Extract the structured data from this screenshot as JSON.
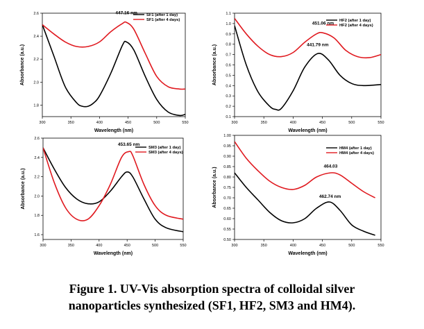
{
  "caption": {
    "line1": "Figure 1. UV-Vis absorption spectra of colloidal silver",
    "line2": "nanoparticles synthesized (SF1, HF2, SM3 and HM4)."
  },
  "colors": {
    "day1": "#000000",
    "day4": "#e0191f"
  },
  "chart_data": [
    {
      "id": "sf1",
      "type": "line",
      "xlabel": "Wavelength (nm)",
      "ylabel": "Absorbance (a.u.)",
      "xlim": [
        300,
        550
      ],
      "ylim": [
        1.7,
        2.6
      ],
      "xticks": [
        300,
        350,
        400,
        450,
        500,
        550
      ],
      "yticks": [
        1.8,
        2.0,
        2.2,
        2.4,
        2.6
      ],
      "ytick_labels": [
        "1.8",
        "2.0",
        "2.2",
        "2.4",
        "2.6"
      ],
      "legend": "top-right",
      "annotations": [
        {
          "text": "447.16 nm",
          "x": 447,
          "y": 2.59
        }
      ],
      "series": [
        {
          "name": "SF1 (after 1 day)",
          "color": "#000000",
          "x": [
            300,
            320,
            340,
            360,
            370,
            380,
            390,
            400,
            420,
            440,
            447,
            460,
            480,
            500,
            520,
            540,
            550
          ],
          "y": [
            2.5,
            2.23,
            1.96,
            1.82,
            1.79,
            1.79,
            1.82,
            1.88,
            2.08,
            2.32,
            2.35,
            2.28,
            2.05,
            1.85,
            1.74,
            1.71,
            1.72
          ]
        },
        {
          "name": "SF1 (after 4 days)",
          "color": "#e0191f",
          "x": [
            300,
            320,
            340,
            360,
            380,
            400,
            420,
            440,
            447,
            460,
            480,
            500,
            520,
            540,
            550
          ],
          "y": [
            2.5,
            2.42,
            2.35,
            2.31,
            2.31,
            2.35,
            2.44,
            2.51,
            2.52,
            2.46,
            2.25,
            2.05,
            1.96,
            1.94,
            1.94
          ]
        }
      ]
    },
    {
      "id": "hf2",
      "type": "line",
      "xlabel": "Wavelength (nm)",
      "ylabel": "Absorbance (a.u.)",
      "xlim": [
        300,
        550
      ],
      "ylim": [
        0.1,
        1.1
      ],
      "xticks": [
        300,
        350,
        400,
        450,
        500,
        550
      ],
      "yticks": [
        0.1,
        0.2,
        0.3,
        0.4,
        0.5,
        0.6,
        0.7,
        0.8,
        0.9,
        1.0,
        1.1
      ],
      "ytick_labels": [
        "0.1",
        "0.2",
        "0.3",
        "0.4",
        "0.5",
        "0.6",
        "0.7",
        "0.8",
        "0.9",
        "1.0",
        "1.1"
      ],
      "legend": "top-right",
      "annotations": [
        {
          "text": "451.06 nm",
          "x": 451,
          "y": 0.99
        },
        {
          "text": "441.79 nm",
          "x": 442,
          "y": 0.78
        }
      ],
      "series": [
        {
          "name": "HF2 (after 1 day)",
          "color": "#000000",
          "x": [
            300,
            320,
            340,
            360,
            370,
            380,
            400,
            420,
            442,
            460,
            480,
            500,
            520,
            550
          ],
          "y": [
            0.98,
            0.6,
            0.34,
            0.2,
            0.17,
            0.18,
            0.35,
            0.58,
            0.71,
            0.65,
            0.5,
            0.42,
            0.4,
            0.41
          ]
        },
        {
          "name": "HF2 (after 4 days)",
          "color": "#e0191f",
          "x": [
            300,
            320,
            340,
            360,
            380,
            400,
            420,
            440,
            451,
            470,
            490,
            510,
            530,
            550
          ],
          "y": [
            1.05,
            0.9,
            0.78,
            0.7,
            0.68,
            0.72,
            0.82,
            0.9,
            0.91,
            0.86,
            0.74,
            0.68,
            0.67,
            0.7
          ]
        }
      ]
    },
    {
      "id": "sm3",
      "type": "line",
      "xlabel": "Wavelength (nm)",
      "ylabel": "Absorbance (a.u.)",
      "xlim": [
        300,
        550
      ],
      "ylim": [
        1.55,
        2.6
      ],
      "xticks": [
        300,
        350,
        400,
        450,
        500,
        550
      ],
      "yticks": [
        1.6,
        1.8,
        2.0,
        2.2,
        2.4,
        2.6
      ],
      "ytick_labels": [
        "1.6",
        "1.8",
        "2.0",
        "2.2",
        "2.4",
        "2.6"
      ],
      "legend": "top-right",
      "annotations": [
        {
          "text": "453.65 nm",
          "x": 453,
          "y": 2.52
        }
      ],
      "series": [
        {
          "name": "SM3 (after 1 day)",
          "color": "#000000",
          "x": [
            300,
            320,
            340,
            360,
            380,
            400,
            420,
            440,
            450,
            460,
            480,
            500,
            520,
            550
          ],
          "y": [
            2.5,
            2.28,
            2.09,
            1.97,
            1.92,
            1.94,
            2.05,
            2.2,
            2.25,
            2.2,
            1.97,
            1.76,
            1.67,
            1.63
          ]
        },
        {
          "name": "SM3 (after 4 days)",
          "color": "#e0191f",
          "x": [
            300,
            320,
            340,
            360,
            380,
            400,
            420,
            440,
            453,
            460,
            480,
            500,
            520,
            550
          ],
          "y": [
            2.5,
            2.14,
            1.88,
            1.76,
            1.76,
            1.9,
            2.12,
            2.4,
            2.46,
            2.42,
            2.12,
            1.9,
            1.8,
            1.76
          ]
        }
      ]
    },
    {
      "id": "hm4",
      "type": "line",
      "xlabel": "Wavelength (nm)",
      "ylabel": "Absorbance (a.u.)",
      "xlim": [
        300,
        550
      ],
      "ylim": [
        0.5,
        1.0
      ],
      "xticks": [
        300,
        350,
        400,
        450,
        500,
        550
      ],
      "yticks": [
        0.5,
        0.55,
        0.6,
        0.65,
        0.7,
        0.75,
        0.8,
        0.85,
        0.9,
        0.95,
        1.0
      ],
      "ytick_labels": [
        "0.50",
        "0.55",
        "0.60",
        "0.65",
        "0.70",
        "0.75",
        "0.80",
        "0.85",
        "0.90",
        "0.95",
        "1.00"
      ],
      "legend": "top-right",
      "annotations": [
        {
          "text": "464.03",
          "x": 464,
          "y": 0.845
        },
        {
          "text": "462.74 nm",
          "x": 463,
          "y": 0.7
        }
      ],
      "series": [
        {
          "name": "HM4 (after 1 day)",
          "color": "#000000",
          "x": [
            300,
            320,
            340,
            360,
            380,
            400,
            420,
            440,
            462,
            480,
            500,
            520,
            540
          ],
          "y": [
            0.82,
            0.75,
            0.69,
            0.63,
            0.59,
            0.58,
            0.6,
            0.65,
            0.68,
            0.64,
            0.57,
            0.54,
            0.52
          ]
        },
        {
          "name": "HM4 (after 4 days)",
          "color": "#e0191f",
          "x": [
            300,
            320,
            340,
            360,
            380,
            400,
            420,
            440,
            464,
            480,
            500,
            520,
            540
          ],
          "y": [
            0.97,
            0.89,
            0.83,
            0.78,
            0.75,
            0.74,
            0.76,
            0.8,
            0.82,
            0.81,
            0.77,
            0.73,
            0.7
          ]
        }
      ]
    }
  ]
}
